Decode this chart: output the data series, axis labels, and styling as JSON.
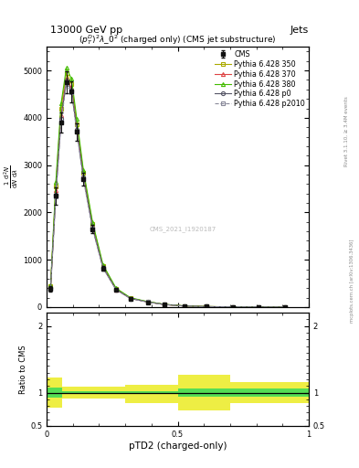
{
  "title": "13000 GeV pp",
  "title_right": "Jets",
  "plot_title": "$(p_T^D)^2\\lambda\\_0^2$ (charged only) (CMS jet substructure)",
  "xlabel": "pTD2 (charged-only)",
  "watermark": "CMS_2021_I1920187",
  "rivet_text": "Rivet 3.1.10, ≥ 3.4M events",
  "mcplots_text": "mcplots.cern.ch [arXiv:1306.3436]",
  "x_data": [
    0.015,
    0.035,
    0.055,
    0.075,
    0.095,
    0.115,
    0.14,
    0.175,
    0.215,
    0.265,
    0.32,
    0.385,
    0.45,
    0.525,
    0.61,
    0.71,
    0.81,
    0.91
  ],
  "cms_y": [
    380,
    2350,
    3900,
    4750,
    4550,
    3700,
    2700,
    1650,
    820,
    360,
    175,
    100,
    50,
    22,
    10,
    3.5,
    1.2,
    0.4
  ],
  "cms_err": [
    60,
    180,
    210,
    240,
    220,
    180,
    130,
    80,
    45,
    22,
    10,
    7,
    4,
    2,
    1,
    0.5,
    0.2,
    0.1
  ],
  "p350_y": [
    450,
    2550,
    4200,
    4950,
    4720,
    3870,
    2840,
    1760,
    870,
    385,
    190,
    112,
    56,
    25,
    11.5,
    4.2,
    1.6,
    0.6
  ],
  "p370_y": [
    420,
    2470,
    4050,
    4830,
    4630,
    3790,
    2780,
    1710,
    845,
    374,
    185,
    109,
    54,
    24,
    11,
    3.9,
    1.5,
    0.5
  ],
  "p380_y": [
    460,
    2650,
    4300,
    5050,
    4820,
    3970,
    2900,
    1800,
    895,
    398,
    197,
    116,
    58,
    26,
    12,
    4.5,
    1.8,
    0.7
  ],
  "p0_y": [
    400,
    2380,
    3980,
    4780,
    4580,
    3740,
    2740,
    1680,
    835,
    368,
    183,
    108,
    54,
    24,
    10.5,
    3.7,
    1.4,
    0.4
  ],
  "p2010_y": [
    390,
    2340,
    3920,
    4720,
    4530,
    3700,
    2700,
    1655,
    825,
    363,
    180,
    106,
    53,
    23.5,
    10.2,
    3.6,
    1.35,
    0.4
  ],
  "ratio_x_edges": [
    0.0,
    0.06,
    0.12,
    0.3,
    0.5,
    0.7,
    1.0
  ],
  "ratio_inner_lo": [
    0.93,
    0.985,
    0.985,
    0.975,
    0.945,
    0.945
  ],
  "ratio_inner_hi": [
    1.07,
    1.015,
    1.015,
    1.025,
    1.055,
    1.055
  ],
  "ratio_outer_lo": [
    0.78,
    0.91,
    0.91,
    0.84,
    0.73,
    0.84
  ],
  "ratio_outer_hi": [
    1.22,
    1.09,
    1.09,
    1.11,
    1.27,
    1.16
  ],
  "color_cms": "#111111",
  "color_350": "#aaaa00",
  "color_370": "#dd4444",
  "color_380": "#44bb00",
  "color_p0": "#555566",
  "color_p2010": "#888899",
  "color_ratio_inner": "#55dd55",
  "color_ratio_outer": "#eeee44",
  "ylim_main": [
    0,
    5500
  ],
  "ylim_ratio": [
    0.5,
    2.2
  ],
  "xlim": [
    0.0,
    1.0
  ],
  "yticks_main": [
    0,
    1000,
    2000,
    3000,
    4000,
    5000
  ],
  "ytick_labels_main": [
    "0",
    "1000",
    "2000",
    "3000",
    "4000",
    "5000"
  ]
}
